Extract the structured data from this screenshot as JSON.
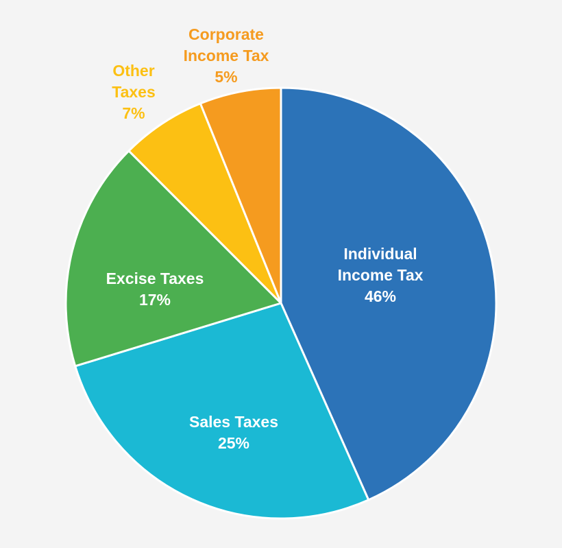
{
  "chart_data": {
    "type": "pie",
    "title": "",
    "slices": [
      {
        "label_lines": [
          "Individual",
          "Income Tax"
        ],
        "pct_label": "46%",
        "value": 46,
        "color": "#2c73b8",
        "label_color": "#ffffff"
      },
      {
        "label_lines": [
          "Sales Taxes"
        ],
        "pct_label": "25%",
        "value": 25,
        "color": "#1bb9d4",
        "label_color": "#ffffff"
      },
      {
        "label_lines": [
          "Excise Taxes"
        ],
        "pct_label": "17%",
        "value": 17,
        "color": "#4caf50",
        "label_color": "#ffffff"
      },
      {
        "label_lines": [
          "Other",
          "Taxes"
        ],
        "pct_label": "7%",
        "value": 7,
        "color": "#fcc013",
        "label_color": "#fcc013"
      },
      {
        "label_lines": [
          "Corporate",
          "Income Tax"
        ],
        "pct_label": "5%",
        "value": 5,
        "color": "#f59b1f",
        "label_color": "#f59b1f"
      }
    ]
  }
}
